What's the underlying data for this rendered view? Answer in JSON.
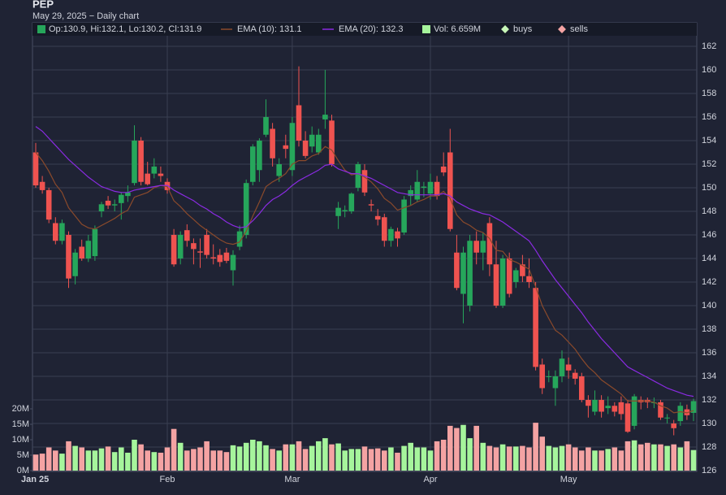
{
  "chart_data": {
    "type": "candlestick",
    "title": "PEP",
    "subtitle": "May 29, 2025 − Daily chart",
    "categories": [
      "Jan 25",
      null,
      null,
      null,
      null,
      null,
      null,
      null,
      null,
      null,
      null,
      null,
      null,
      null,
      null,
      null,
      null,
      null,
      null,
      null,
      "Feb",
      null,
      null,
      null,
      null,
      null,
      null,
      null,
      null,
      null,
      null,
      null,
      null,
      null,
      null,
      null,
      null,
      null,
      null,
      "Mar",
      null,
      null,
      null,
      null,
      null,
      null,
      null,
      null,
      null,
      null,
      null,
      null,
      null,
      null,
      null,
      null,
      null,
      null,
      null,
      null,
      "Apr",
      null,
      null,
      null,
      null,
      null,
      null,
      null,
      null,
      null,
      null,
      null,
      null,
      null,
      null,
      null,
      null,
      null,
      null,
      null,
      null,
      "May",
      null,
      null,
      null,
      null,
      null,
      null,
      null,
      null,
      null,
      null,
      null,
      null,
      null,
      null,
      null,
      null,
      null,
      null,
      null
    ],
    "ohlc": {
      "name": "Op:130.9, Hi:132.1, Lo:130.2, Cl:131.9",
      "up_color": "#26a65b",
      "down_color": "#ef5350",
      "open": [
        153,
        150.5,
        149.8,
        147,
        145.5,
        146,
        142.5,
        145,
        144,
        144.2,
        148,
        148.9,
        148.5,
        148.7,
        149.3,
        150.4,
        154,
        151.2,
        151.2,
        151.2,
        150.5,
        146,
        144,
        146.4,
        145.3,
        144.6,
        146,
        144.1,
        144.3,
        144.5,
        143,
        145,
        146,
        150.5,
        151.5,
        154.5,
        155,
        151,
        153.6,
        151.5,
        157,
        154,
        153.5,
        153,
        155.8,
        155.7,
        147.6,
        148,
        148,
        150,
        151.5,
        148.6,
        147.6,
        147.5,
        145.5,
        146.3,
        146.2,
        149.3,
        149,
        150,
        149.5,
        150.5,
        151.8,
        153,
        144.5,
        141,
        140,
        145.5,
        144.5,
        147,
        143.5,
        140,
        144,
        142,
        143.5,
        142.5,
        141.5,
        135,
        134,
        133,
        134,
        135,
        134.3,
        134,
        132,
        131,
        132,
        131.3,
        131.5,
        131.8,
        131.7,
        129.8,
        132,
        132,
        131.8,
        131.8,
        130.5,
        130,
        130.2,
        131.2,
        130.9
      ],
      "high": [
        153.8,
        151,
        150,
        147.5,
        147.3,
        146.3,
        144.8,
        145.6,
        146,
        146.8,
        148.8,
        149.3,
        149,
        149.6,
        150.2,
        155.3,
        154.3,
        152.2,
        152.5,
        151.8,
        150.8,
        146.5,
        146.3,
        146.9,
        145.7,
        145.7,
        146.5,
        145.2,
        144.8,
        144.9,
        144.7,
        146.8,
        150.7,
        153.7,
        154.2,
        157.5,
        155.5,
        152.5,
        154.5,
        156,
        160.3,
        154.8,
        155.2,
        155,
        160,
        156.2,
        148.8,
        148.5,
        149.6,
        152.2,
        152,
        149,
        148.2,
        147.8,
        146.7,
        146.6,
        149.3,
        150.2,
        151.5,
        150.5,
        151.2,
        151,
        153,
        155,
        146,
        145,
        146,
        146.3,
        146.2,
        147.5,
        145.5,
        144.3,
        144.5,
        143.2,
        144.3,
        144,
        142,
        135.5,
        134.5,
        134.5,
        136.2,
        135.6,
        134.6,
        134.3,
        132.4,
        132.8,
        132.4,
        132.3,
        131.8,
        132.3,
        132,
        132.5,
        132.3,
        132.2,
        132.2,
        132,
        130.8,
        130.3,
        131.8,
        131.6,
        132.1
      ],
      "low": [
        150,
        149.5,
        147,
        145.2,
        145.2,
        141.5,
        141.8,
        143.8,
        143.7,
        143.8,
        147.5,
        148.2,
        148,
        147.3,
        148.8,
        150.2,
        150.2,
        150.2,
        150.8,
        150.5,
        149.5,
        143.3,
        143.5,
        145,
        143.5,
        143.2,
        144,
        143.5,
        143.3,
        143.6,
        141.7,
        144.7,
        145.7,
        150.2,
        150.5,
        154.3,
        151.8,
        150.5,
        152.5,
        151,
        153.5,
        152.5,
        153,
        152.8,
        155,
        151.8,
        146.5,
        147.5,
        147.8,
        149.7,
        149.3,
        148,
        146.8,
        145,
        145,
        145,
        146,
        148.5,
        148.8,
        149.2,
        149,
        149,
        151,
        146.3,
        141.3,
        138.5,
        139.5,
        143.5,
        143,
        142.5,
        139.8,
        139.8,
        140.7,
        141.5,
        142,
        141.5,
        134.5,
        132.5,
        133.5,
        131.5,
        133.5,
        133.8,
        133.3,
        131.8,
        130.5,
        130.7,
        130.5,
        130.8,
        130.6,
        130.3,
        129.2,
        129.5,
        131.2,
        131.3,
        131.3,
        130.3,
        130,
        129,
        129.8,
        130.3,
        130.2
      ],
      "close": [
        150.2,
        149.8,
        147.3,
        145.5,
        147,
        142.3,
        144.5,
        144,
        145.5,
        146.5,
        148.6,
        148.5,
        148.6,
        149.4,
        149.6,
        154,
        150.5,
        150.3,
        151.8,
        151,
        149.8,
        143.5,
        146,
        145.5,
        144.8,
        144.5,
        144.3,
        144,
        143.7,
        143.8,
        144.3,
        146.3,
        150.4,
        153.5,
        154,
        156,
        152.5,
        152,
        153.3,
        155.5,
        154,
        152.7,
        154.5,
        154.5,
        156.2,
        152,
        148.3,
        148.1,
        149.5,
        152,
        149.6,
        148.5,
        147.3,
        145.5,
        146.5,
        145.7,
        149,
        149.8,
        150.5,
        150.1,
        150.5,
        149.3,
        151.3,
        146.5,
        141.5,
        144.5,
        145.5,
        144.5,
        145.5,
        143.5,
        140,
        144,
        141,
        143,
        142.5,
        142,
        134.8,
        133,
        134,
        134,
        135.5,
        134.5,
        133.8,
        132,
        131.5,
        132,
        131,
        131.5,
        131,
        130.8,
        129.3,
        132.3,
        131.8,
        131.8,
        131.8,
        130.5,
        130.5,
        129.6,
        131.5,
        130.7,
        131.9
      ]
    },
    "series": [
      {
        "name": "EMA (10): 131.1",
        "color": "#8b4a2b",
        "values": [
          153.0,
          152.3,
          151.4,
          150.3,
          149.6,
          148.3,
          147.6,
          146.9,
          146.6,
          146.5,
          146.8,
          147.1,
          147.4,
          147.8,
          148.1,
          149.2,
          149.4,
          149.6,
          150.0,
          150.2,
          150.1,
          148.9,
          148.4,
          147.8,
          147.3,
          146.8,
          146.4,
          146.0,
          145.6,
          145.3,
          145.2,
          145.4,
          146.3,
          147.6,
          148.8,
          150.1,
          150.5,
          150.8,
          151.2,
          152.0,
          152.3,
          152.3,
          152.7,
          152.9,
          153.5,
          153.2,
          152.3,
          151.5,
          151.1,
          151.2,
          150.9,
          150.5,
          149.9,
          149.1,
          148.7,
          148.1,
          148.3,
          148.5,
          148.8,
          149.0,
          149.3,
          149.3,
          149.7,
          149.1,
          147.7,
          147.1,
          146.8,
          146.4,
          146.2,
          145.7,
          144.7,
          144.6,
          143.9,
          143.7,
          143.4,
          143.1,
          141.6,
          140.0,
          138.9,
          137.9,
          137.5,
          136.9,
          136.3,
          135.5,
          134.8,
          134.3,
          133.7,
          133.3,
          132.9,
          132.5,
          131.9,
          131.9,
          131.9,
          131.9,
          131.8,
          131.5,
          131.3,
          130.9,
          131.0,
          130.9,
          131.1
        ]
      },
      {
        "name": "EMA (20): 132.3",
        "color": "#8a2be2",
        "values": [
          155.2,
          154.8,
          154.2,
          153.6,
          153.0,
          152.4,
          151.9,
          151.4,
          150.9,
          150.5,
          150.1,
          149.9,
          149.7,
          149.6,
          149.6,
          149.8,
          149.9,
          150.0,
          150.1,
          150.2,
          150.2,
          149.8,
          149.5,
          149.2,
          148.9,
          148.5,
          148.2,
          147.8,
          147.5,
          147.1,
          146.8,
          146.6,
          146.7,
          147.2,
          147.8,
          148.5,
          149.0,
          149.3,
          149.7,
          150.2,
          150.6,
          150.9,
          151.2,
          151.5,
          151.9,
          152.0,
          151.6,
          151.4,
          151.2,
          151.2,
          151.0,
          150.8,
          150.5,
          150.2,
          149.9,
          149.6,
          149.5,
          149.4,
          149.4,
          149.4,
          149.4,
          149.4,
          149.5,
          149.3,
          148.8,
          148.5,
          148.2,
          148.0,
          147.8,
          147.7,
          147.4,
          147.1,
          146.7,
          146.3,
          145.9,
          145.5,
          144.7,
          143.8,
          143.0,
          142.2,
          141.5,
          140.8,
          140.1,
          139.4,
          138.6,
          137.9,
          137.2,
          136.6,
          136.0,
          135.4,
          134.8,
          134.5,
          134.2,
          133.9,
          133.6,
          133.3,
          133.0,
          132.8,
          132.6,
          132.4,
          132.3
        ]
      }
    ],
    "volume": {
      "name": "Vol: 6.659M",
      "up_color": "#a6f59c",
      "down_color": "#f4a3a3",
      "axis": "y2",
      "values": [
        5.2,
        5.5,
        7.5,
        6.5,
        5.5,
        9.5,
        8,
        7.5,
        6.5,
        6.5,
        7.2,
        7.8,
        6,
        7.5,
        5.8,
        10,
        8.5,
        6.5,
        6,
        5.8,
        7.5,
        13.5,
        9,
        6.5,
        7,
        7.5,
        9.5,
        6.5,
        6.5,
        6,
        8.2,
        7.8,
        9,
        10,
        9.5,
        8.2,
        7,
        6.5,
        8.5,
        8.5,
        9.5,
        7,
        8,
        9.5,
        10.5,
        8.5,
        8.8,
        6.5,
        7,
        7,
        7.8,
        7,
        7.2,
        6.5,
        7.5,
        5.8,
        8,
        9,
        7.5,
        7.5,
        6.5,
        9.5,
        10,
        14.5,
        13.8,
        14.8,
        10.5,
        14.5,
        9,
        8,
        7.5,
        8.5,
        7.8,
        7.8,
        8,
        7.5,
        15.5,
        11,
        8,
        7.5,
        8,
        8.5,
        7.5,
        6.5,
        7.5,
        6.5,
        6.5,
        7,
        7.5,
        6.5,
        9.5,
        9.8,
        8.5,
        9,
        8.5,
        8.5,
        8,
        8.5,
        7.5,
        9.5,
        6.659
      ]
    },
    "markers": [
      {
        "name": "buys",
        "color": "#c8f7b8"
      },
      {
        "name": "sells",
        "color": "#f4a3a3"
      }
    ],
    "ylim": [
      126,
      162
    ],
    "yticks": [
      126,
      128,
      130,
      132,
      134,
      136,
      138,
      140,
      142,
      144,
      146,
      148,
      150,
      152,
      154,
      156,
      158,
      160,
      162
    ],
    "y2lim": [
      0,
      20
    ],
    "y2ticks": [
      {
        "value": 0,
        "label": "0M"
      },
      {
        "value": 5,
        "label": "5M"
      },
      {
        "value": 10,
        "label": "10M"
      },
      {
        "value": 15,
        "label": "15M"
      },
      {
        "value": 20,
        "label": "20M"
      }
    ],
    "grid": true
  }
}
